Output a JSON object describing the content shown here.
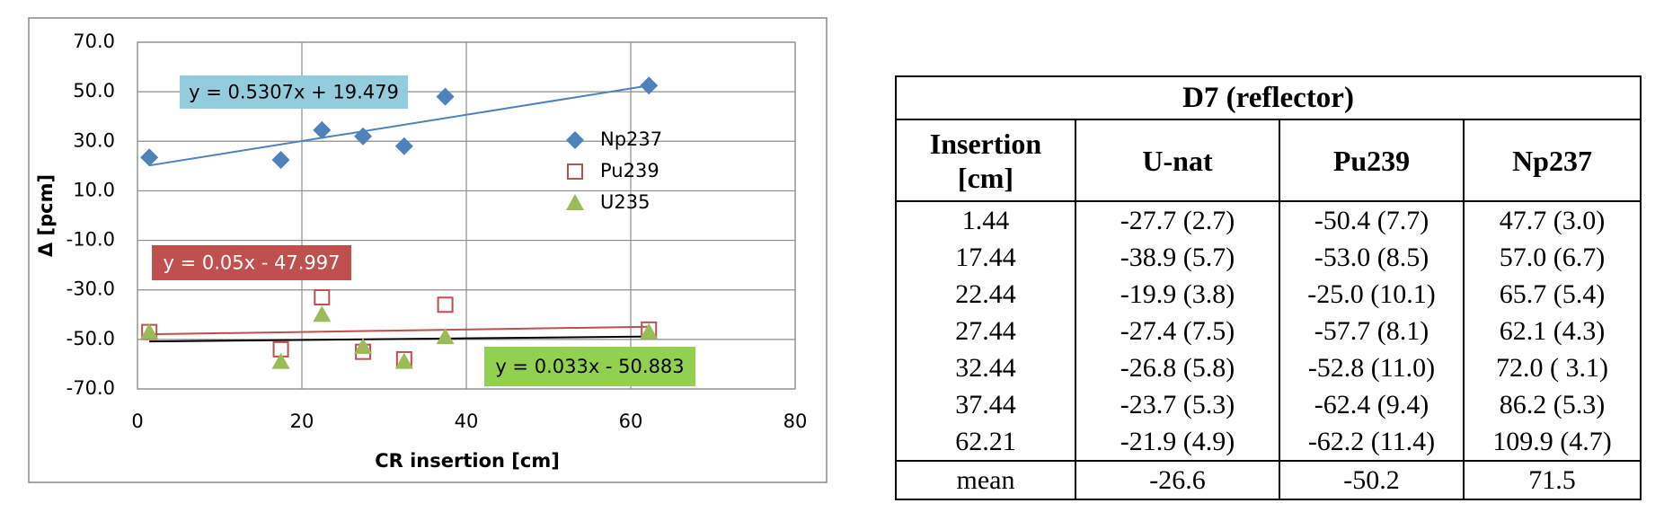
{
  "chart_data": {
    "type": "scatter",
    "x_label": "CR insertion [cm]",
    "y_label": "Δ [pcm]",
    "x": [
      1.44,
      17.44,
      22.44,
      27.44,
      32.44,
      37.44,
      62.21
    ],
    "xlim": [
      0,
      80
    ],
    "xticks": [
      0,
      20,
      40,
      60,
      80
    ],
    "ylim": [
      -70,
      70
    ],
    "yticks": [
      {
        "value": -70,
        "label": "-70.0"
      },
      {
        "value": -50,
        "label": "-50.0"
      },
      {
        "value": -30,
        "label": "-30.0"
      },
      {
        "value": -10,
        "label": "-10.0"
      },
      {
        "value": 10,
        "label": "10.0"
      },
      {
        "value": 30,
        "label": "30.0"
      },
      {
        "value": 50,
        "label": "50.0"
      },
      {
        "value": 70,
        "label": "70.0"
      }
    ],
    "grid": true,
    "legend": "right",
    "series": [
      {
        "name": "Np237",
        "color": "#4f81bd",
        "marker": "diamond",
        "values": [
          23.5,
          22.5,
          34.5,
          32,
          28,
          48,
          52.5
        ],
        "trendline": {
          "label": "y = 0.5307x + 19.479",
          "slope": 0.5307,
          "intercept": 19.479,
          "color": "#4f81bd",
          "label_color": "#93cddd",
          "text_color": "#000000"
        }
      },
      {
        "name": "Pu239",
        "color": "#c0504d",
        "marker": "square",
        "values": [
          -47,
          -54,
          -33,
          -55,
          -58,
          -36,
          -46
        ],
        "trendline": {
          "label": "y = 0.05x - 47.997",
          "slope": 0.05,
          "intercept": -47.997,
          "color": "#c0504d",
          "label_color": "#c0504d",
          "text_color": "#ffffff"
        }
      },
      {
        "name": "U235",
        "color": "#9bbb59",
        "marker": "triangle",
        "values": [
          -47,
          -59,
          -40,
          -53,
          -59,
          -49,
          -47
        ],
        "trendline": {
          "label": "y = 0.033x - 50.883",
          "slope": 0.033,
          "intercept": -50.883,
          "color": "#000000",
          "label_color": "#92d050",
          "text_color": "#000000"
        }
      }
    ]
  },
  "table": {
    "title": "D7 (reflector)",
    "header": [
      "Insertion\n[cm]",
      "U-nat",
      "Pu239",
      "Np237"
    ],
    "rows": [
      [
        "1.44",
        "-27.7 (2.7)",
        "-50.4 (7.7)",
        "47.7 (3.0)"
      ],
      [
        "17.44",
        "-38.9 (5.7)",
        "-53.0 (8.5)",
        "57.0 (6.7)"
      ],
      [
        "22.44",
        "-19.9 (3.8)",
        "-25.0 (10.1)",
        "65.7 (5.4)"
      ],
      [
        "27.44",
        "-27.4 (7.5)",
        "-57.7 (8.1)",
        "62.1 (4.3)"
      ],
      [
        "32.44",
        "-26.8 (5.8)",
        "-52.8 (11.0)",
        "72.0 ( 3.1)"
      ],
      [
        "37.44",
        "-23.7 (5.3)",
        "-62.4 (9.4)",
        "86.2 (5.3)"
      ],
      [
        "62.21",
        "-21.9 (4.9)",
        "-62.2 (11.4)",
        "109.9 (4.7)"
      ]
    ],
    "footer": [
      "mean",
      "-26.6",
      "-50.2",
      "71.5"
    ]
  }
}
